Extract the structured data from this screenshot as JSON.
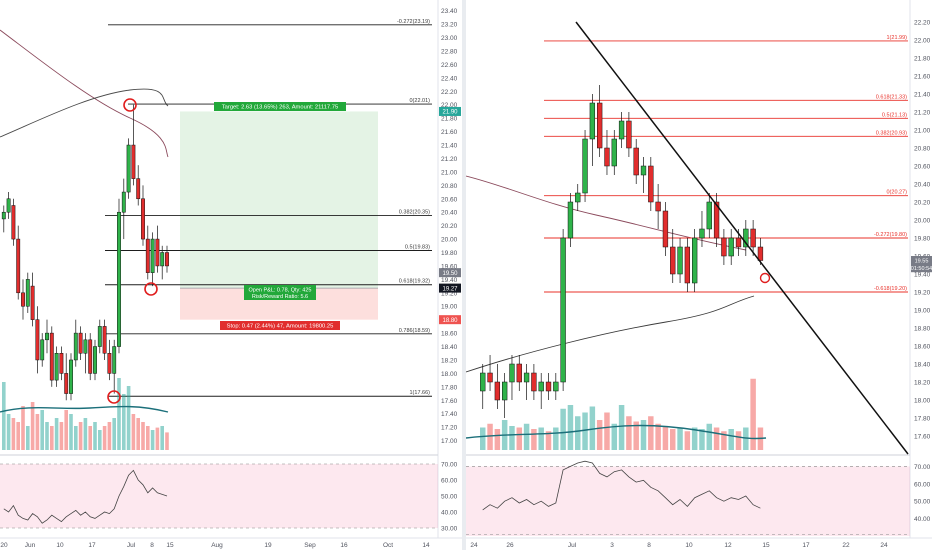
{
  "chart_data": [
    {
      "type": "candlestick",
      "panel": "left",
      "x_tick_labels": [
        "20",
        "Jun",
        "10",
        "17",
        "Jul",
        "8",
        "15",
        "Aug",
        "19",
        "Sep",
        "16",
        "Oct",
        "14"
      ],
      "y_axis": {
        "range": [
          16.8,
          23.5
        ],
        "tick_labels": [
          "17.00",
          "17.20",
          "17.40",
          "17.60",
          "17.80",
          "18.00",
          "18.20",
          "18.40",
          "18.60",
          "18.80",
          "19.00",
          "19.20",
          "19.40",
          "19.60",
          "19.80",
          "20.00",
          "20.20",
          "20.40",
          "20.60",
          "20.80",
          "21.00",
          "21.20",
          "21.40",
          "21.60",
          "21.80",
          "22.00",
          "22.20",
          "22.40",
          "22.60",
          "22.80",
          "23.00",
          "23.20",
          "23.40"
        ],
        "price_badges": [
          {
            "text": "21.90",
            "value": 21.9,
            "color": "#26a69a"
          },
          {
            "text": "19.50",
            "value": 19.5,
            "color": "#787b86"
          },
          {
            "text": "19.27",
            "value": 19.27,
            "color": "#131722"
          },
          {
            "text": "18.80",
            "value": 18.8,
            "color": "#ef5350"
          }
        ]
      },
      "fib_levels": [
        {
          "label": "-0.272(23.19)",
          "value": 23.19
        },
        {
          "label": "0(22.01)",
          "value": 22.01
        },
        {
          "label": "0.382(20.35)",
          "value": 20.35
        },
        {
          "label": "0.5(19.83)",
          "value": 19.83
        },
        {
          "label": "0.618(19.32)",
          "value": 19.32
        },
        {
          "label": "0.786(18.59)",
          "value": 18.59
        },
        {
          "label": "1(17.66)",
          "value": 17.66
        }
      ],
      "position_tool": {
        "entry": 19.27,
        "target": 21.9,
        "stop": 18.8,
        "target_label": "Target: 2.63 (13.65%) 263, Amount: 21117.75",
        "open_label": "Open P&L: 0.78, Qty: 425",
        "ratio_label": "Risk/Reward Ratio: 5.6",
        "stop_label": "Stop: 0.47 (2.44%) 47, Amount: 19800.25"
      },
      "candles": [
        {
          "o": 20.3,
          "h": 20.5,
          "l": 20.1,
          "c": 20.4
        },
        {
          "o": 20.4,
          "h": 20.7,
          "l": 20.3,
          "c": 20.6
        },
        {
          "o": 20.5,
          "h": 20.6,
          "l": 19.9,
          "c": 20.0
        },
        {
          "o": 20.0,
          "h": 20.2,
          "l": 19.1,
          "c": 19.2
        },
        {
          "o": 19.2,
          "h": 19.4,
          "l": 18.8,
          "c": 19.0
        },
        {
          "o": 19.0,
          "h": 19.5,
          "l": 18.9,
          "c": 19.4
        },
        {
          "o": 19.3,
          "h": 19.5,
          "l": 18.7,
          "c": 18.8
        },
        {
          "o": 18.8,
          "h": 19.0,
          "l": 18.0,
          "c": 18.2
        },
        {
          "o": 18.2,
          "h": 18.6,
          "l": 18.1,
          "c": 18.5
        },
        {
          "o": 18.5,
          "h": 18.8,
          "l": 18.3,
          "c": 18.6
        },
        {
          "o": 18.6,
          "h": 18.7,
          "l": 17.8,
          "c": 17.9
        },
        {
          "o": 17.9,
          "h": 18.4,
          "l": 17.8,
          "c": 18.3
        },
        {
          "o": 18.3,
          "h": 18.4,
          "l": 17.9,
          "c": 18.0
        },
        {
          "o": 18.0,
          "h": 18.3,
          "l": 17.6,
          "c": 17.7
        },
        {
          "o": 17.7,
          "h": 18.3,
          "l": 17.6,
          "c": 18.2
        },
        {
          "o": 18.2,
          "h": 18.8,
          "l": 18.1,
          "c": 18.6
        },
        {
          "o": 18.6,
          "h": 18.7,
          "l": 18.2,
          "c": 18.3
        },
        {
          "o": 18.3,
          "h": 18.6,
          "l": 18.0,
          "c": 18.5
        },
        {
          "o": 18.5,
          "h": 18.6,
          "l": 17.9,
          "c": 18.0
        },
        {
          "o": 18.0,
          "h": 18.5,
          "l": 17.9,
          "c": 18.4
        },
        {
          "o": 18.4,
          "h": 18.8,
          "l": 18.3,
          "c": 18.7
        },
        {
          "o": 18.7,
          "h": 18.8,
          "l": 18.2,
          "c": 18.3
        },
        {
          "o": 18.3,
          "h": 18.5,
          "l": 17.9,
          "c": 18.0
        },
        {
          "o": 18.0,
          "h": 18.5,
          "l": 17.7,
          "c": 18.4
        },
        {
          "o": 18.4,
          "h": 20.6,
          "l": 18.3,
          "c": 20.4
        },
        {
          "o": 20.4,
          "h": 20.9,
          "l": 20.0,
          "c": 20.7
        },
        {
          "o": 20.7,
          "h": 21.5,
          "l": 20.6,
          "c": 21.4
        },
        {
          "o": 21.4,
          "h": 22.0,
          "l": 20.8,
          "c": 20.9
        },
        {
          "o": 20.9,
          "h": 21.1,
          "l": 20.5,
          "c": 20.6
        },
        {
          "o": 20.6,
          "h": 20.8,
          "l": 19.9,
          "c": 20.0
        },
        {
          "o": 20.0,
          "h": 20.2,
          "l": 19.4,
          "c": 19.5
        },
        {
          "o": 19.5,
          "h": 20.1,
          "l": 19.3,
          "c": 20.0
        },
        {
          "o": 20.0,
          "h": 20.2,
          "l": 19.5,
          "c": 19.6
        },
        {
          "o": 19.6,
          "h": 19.9,
          "l": 19.4,
          "c": 19.8
        },
        {
          "o": 19.8,
          "h": 19.9,
          "l": 19.5,
          "c": 19.6
        }
      ],
      "volume": [
        0.85,
        0.45,
        0.4,
        0.35,
        0.55,
        0.3,
        0.6,
        0.45,
        0.5,
        0.35,
        0.3,
        0.4,
        0.35,
        0.5,
        0.45,
        0.3,
        0.35,
        0.4,
        0.3,
        0.35,
        0.25,
        0.3,
        0.35,
        0.4,
        0.9,
        0.7,
        0.8,
        0.45,
        0.4,
        0.35,
        0.3,
        0.25,
        0.28,
        0.3,
        0.22
      ],
      "rsi": {
        "tick_labels": [
          "70.00",
          "60.00",
          "50.00",
          "40.00",
          "30.00"
        ],
        "values": [
          42,
          40,
          44,
          38,
          36,
          35,
          39,
          37,
          33,
          35,
          38,
          36,
          34,
          37,
          39,
          41,
          38,
          40,
          37,
          36,
          38,
          40,
          39,
          42,
          50,
          56,
          63,
          66,
          60,
          57,
          52,
          55,
          52,
          51,
          50
        ]
      }
    },
    {
      "type": "candlestick",
      "panel": "right",
      "x_tick_labels": [
        "24",
        "26",
        "Jul",
        "3",
        "8",
        "10",
        "12",
        "15",
        "17",
        "22",
        "24"
      ],
      "y_axis": {
        "range": [
          17.4,
          22.4
        ],
        "tick_labels": [
          "17.60",
          "17.80",
          "18.00",
          "18.20",
          "18.40",
          "18.60",
          "18.80",
          "19.00",
          "19.20",
          "19.40",
          "19.60",
          "19.80",
          "20.00",
          "20.20",
          "20.40",
          "20.60",
          "20.80",
          "21.00",
          "21.20",
          "21.40",
          "21.60",
          "21.80",
          "22.00",
          "22.20"
        ],
        "price_badges": [
          {
            "text": "19.55",
            "value": 19.55,
            "color": "#787b86"
          },
          {
            "text": "01:50:54",
            "value": 19.47,
            "color": "#787b86"
          }
        ]
      },
      "fib_levels": [
        {
          "label": "1(21.99)",
          "value": 21.99
        },
        {
          "label": "0.618(21.33)",
          "value": 21.33
        },
        {
          "label": "0.5(21.13)",
          "value": 21.13
        },
        {
          "label": "0.382(20.93)",
          "value": 20.93
        },
        {
          "label": "0(20.27)",
          "value": 20.27
        },
        {
          "label": "-0.272(19.80)",
          "value": 19.8
        },
        {
          "label": "-0.618(19.20)",
          "value": 19.2
        }
      ],
      "candles": [
        {
          "o": 18.1,
          "h": 18.4,
          "l": 17.9,
          "c": 18.3
        },
        {
          "o": 18.3,
          "h": 18.5,
          "l": 18.1,
          "c": 18.2
        },
        {
          "o": 18.2,
          "h": 18.4,
          "l": 17.9,
          "c": 18.0
        },
        {
          "o": 18.0,
          "h": 18.3,
          "l": 17.8,
          "c": 18.2
        },
        {
          "o": 18.2,
          "h": 18.5,
          "l": 18.0,
          "c": 18.4
        },
        {
          "o": 18.4,
          "h": 18.5,
          "l": 18.1,
          "c": 18.2
        },
        {
          "o": 18.2,
          "h": 18.4,
          "l": 18.0,
          "c": 18.3
        },
        {
          "o": 18.3,
          "h": 18.4,
          "l": 18.0,
          "c": 18.1
        },
        {
          "o": 18.1,
          "h": 18.3,
          "l": 17.9,
          "c": 18.2
        },
        {
          "o": 18.2,
          "h": 18.3,
          "l": 18.0,
          "c": 18.1
        },
        {
          "o": 18.1,
          "h": 18.3,
          "l": 18.0,
          "c": 18.2
        },
        {
          "o": 18.2,
          "h": 19.9,
          "l": 18.1,
          "c": 19.8
        },
        {
          "o": 19.8,
          "h": 20.3,
          "l": 19.7,
          "c": 20.2
        },
        {
          "o": 20.2,
          "h": 20.4,
          "l": 20.1,
          "c": 20.3
        },
        {
          "o": 20.3,
          "h": 21.0,
          "l": 20.2,
          "c": 20.9
        },
        {
          "o": 20.9,
          "h": 21.4,
          "l": 20.6,
          "c": 21.3
        },
        {
          "o": 21.3,
          "h": 21.5,
          "l": 20.7,
          "c": 20.8
        },
        {
          "o": 20.8,
          "h": 21.0,
          "l": 20.5,
          "c": 20.6
        },
        {
          "o": 20.6,
          "h": 21.0,
          "l": 20.5,
          "c": 20.9
        },
        {
          "o": 20.9,
          "h": 21.2,
          "l": 20.8,
          "c": 21.1
        },
        {
          "o": 21.1,
          "h": 21.2,
          "l": 20.7,
          "c": 20.8
        },
        {
          "o": 20.8,
          "h": 20.9,
          "l": 20.4,
          "c": 20.5
        },
        {
          "o": 20.5,
          "h": 20.7,
          "l": 20.3,
          "c": 20.6
        },
        {
          "o": 20.6,
          "h": 20.7,
          "l": 20.1,
          "c": 20.2
        },
        {
          "o": 20.2,
          "h": 20.4,
          "l": 19.9,
          "c": 20.1
        },
        {
          "o": 20.1,
          "h": 20.2,
          "l": 19.6,
          "c": 19.7
        },
        {
          "o": 19.7,
          "h": 19.9,
          "l": 19.3,
          "c": 19.4
        },
        {
          "o": 19.4,
          "h": 19.8,
          "l": 19.3,
          "c": 19.7
        },
        {
          "o": 19.7,
          "h": 19.8,
          "l": 19.2,
          "c": 19.3
        },
        {
          "o": 19.3,
          "h": 19.9,
          "l": 19.2,
          "c": 19.8
        },
        {
          "o": 19.8,
          "h": 20.1,
          "l": 19.7,
          "c": 19.9
        },
        {
          "o": 19.9,
          "h": 20.3,
          "l": 19.8,
          "c": 20.2
        },
        {
          "o": 20.2,
          "h": 20.3,
          "l": 19.7,
          "c": 19.8
        },
        {
          "o": 19.8,
          "h": 19.9,
          "l": 19.5,
          "c": 19.6
        },
        {
          "o": 19.6,
          "h": 19.9,
          "l": 19.5,
          "c": 19.8
        },
        {
          "o": 19.8,
          "h": 19.9,
          "l": 19.6,
          "c": 19.7
        },
        {
          "o": 19.7,
          "h": 20.0,
          "l": 19.6,
          "c": 19.9
        },
        {
          "o": 19.9,
          "h": 20.0,
          "l": 19.6,
          "c": 19.7
        },
        {
          "o": 19.7,
          "h": 19.8,
          "l": 19.5,
          "c": 19.55
        }
      ],
      "volume": [
        0.3,
        0.35,
        0.28,
        0.4,
        0.32,
        0.3,
        0.35,
        0.28,
        0.3,
        0.25,
        0.3,
        0.55,
        0.6,
        0.45,
        0.5,
        0.58,
        0.4,
        0.5,
        0.35,
        0.6,
        0.45,
        0.38,
        0.4,
        0.45,
        0.35,
        0.32,
        0.28,
        0.3,
        0.25,
        0.3,
        0.28,
        0.35,
        0.3,
        0.25,
        0.28,
        0.25,
        0.3,
        0.95,
        0.3
      ],
      "rsi": {
        "tick_labels": [
          "70.00",
          "60.00",
          "50.00",
          "40.00"
        ],
        "values": [
          45,
          48,
          46,
          50,
          52,
          49,
          51,
          48,
          50,
          47,
          49,
          68,
          70,
          72,
          73,
          72,
          66,
          64,
          67,
          68,
          64,
          61,
          62,
          58,
          56,
          52,
          48,
          51,
          47,
          52,
          54,
          56,
          52,
          50,
          52,
          51,
          53,
          48,
          46
        ]
      }
    }
  ]
}
